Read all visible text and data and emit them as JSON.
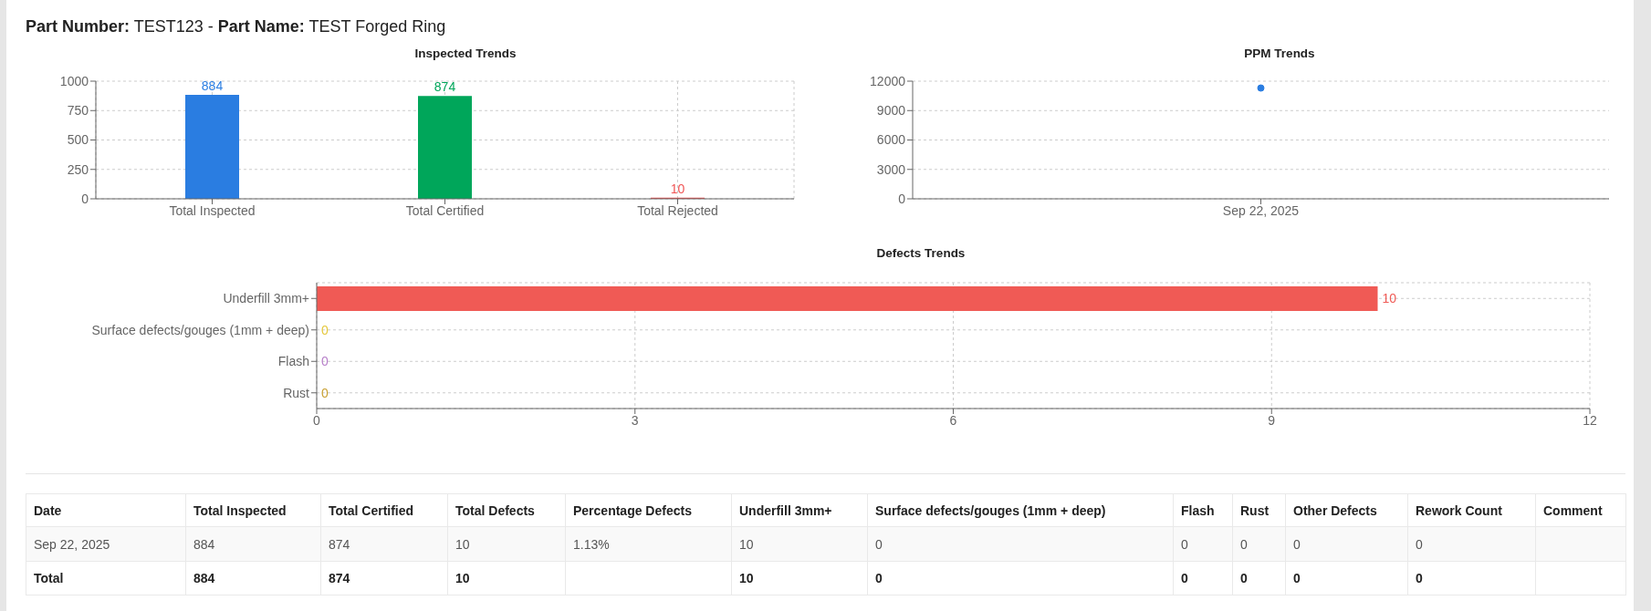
{
  "chart_data": [
    {
      "type": "other",
      "annotations": [
        "Part Number:",
        "TEST123 -",
        "Part Name:",
        "TEST Forged Ring"
      ]
    },
    {
      "type": "bar",
      "title": "Inspected Trends",
      "categories": [
        "Total Inspected",
        "Total Certified",
        "Total Rejected"
      ],
      "values": [
        884,
        874,
        10
      ],
      "colors": [
        "#2a7de1",
        "#00a65a",
        "#f05454"
      ],
      "ylim": [
        0,
        1000
      ],
      "yticks": [
        0,
        250,
        500,
        750,
        1000
      ],
      "grid": true,
      "data_labels": true
    },
    {
      "type": "line",
      "title": "PPM Trends",
      "categories": [
        "Sep 22, 2025"
      ],
      "values": [
        11300
      ],
      "color": "#2a7de1",
      "ylim": [
        0,
        12000
      ],
      "yticks": [
        0,
        3000,
        6000,
        9000,
        12000
      ],
      "grid": "y",
      "marker": "circle"
    },
    {
      "type": "bar",
      "orientation": "horizontal",
      "title": "Defects Trends",
      "categories": [
        "Underfill 3mm+",
        "Surface defects/gouges (1mm + deep)",
        "Flash",
        "Rust"
      ],
      "values": [
        10,
        0,
        0,
        0
      ],
      "colors": [
        "#f05a55",
        "#e5c83c",
        "#b77fc9",
        "#c9a032"
      ],
      "xlim": [
        0,
        12
      ],
      "xticks": [
        0,
        3,
        6,
        9,
        12
      ],
      "grid": true,
      "data_labels": true
    },
    {
      "type": "other",
      "categories": [
        "Date",
        "Total Inspected",
        "Total Certified",
        "Total Defects",
        "Percentage Defects",
        "Underfill 3mm+",
        "Surface defects/gouges (1mm + deep)",
        "Flash",
        "Rust",
        "Other Defects",
        "Rework Count",
        "Comment"
      ],
      "cell_labels": [
        [
          "Sep 22, 2025",
          "884",
          "874",
          "10",
          "1.13%",
          "10",
          "0",
          "0",
          "0",
          "0",
          "0",
          null
        ],
        [
          "Total",
          "884",
          "874",
          "10",
          null,
          "10",
          "0",
          "0",
          "0",
          "0",
          "0",
          null
        ]
      ]
    }
  ]
}
